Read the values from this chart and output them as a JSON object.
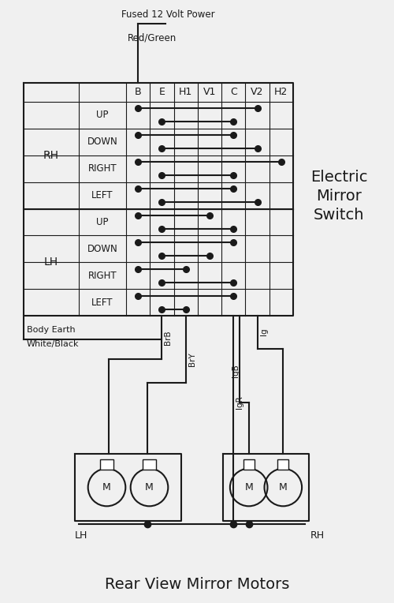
{
  "title_top1": "Fused 12 Volt Power",
  "title_top2": "Red/Green",
  "body_earth": "Body Earth",
  "white_black": "White/Black",
  "switch_label1": "Electric",
  "switch_label2": "Mirror",
  "switch_label3": "Switch",
  "bottom_title": "Rear View Mirror Motors",
  "col_headers": [
    "B",
    "E",
    "H1",
    "V1",
    "C",
    "V2",
    "H2"
  ],
  "row_group1": "RH",
  "row_group2": "LH",
  "row_labels1": [
    "UP",
    "DOWN",
    "RIGHT",
    "LEFT"
  ],
  "row_labels2": [
    "UP",
    "DOWN",
    "RIGHT",
    "LEFT"
  ],
  "wire_labels": [
    "BrB",
    "BrY",
    "IgR",
    "IgB",
    "Ig"
  ],
  "bg_color": "#f0f0f0",
  "line_color": "#1a1a1a",
  "dot_color": "#1a1a1a"
}
